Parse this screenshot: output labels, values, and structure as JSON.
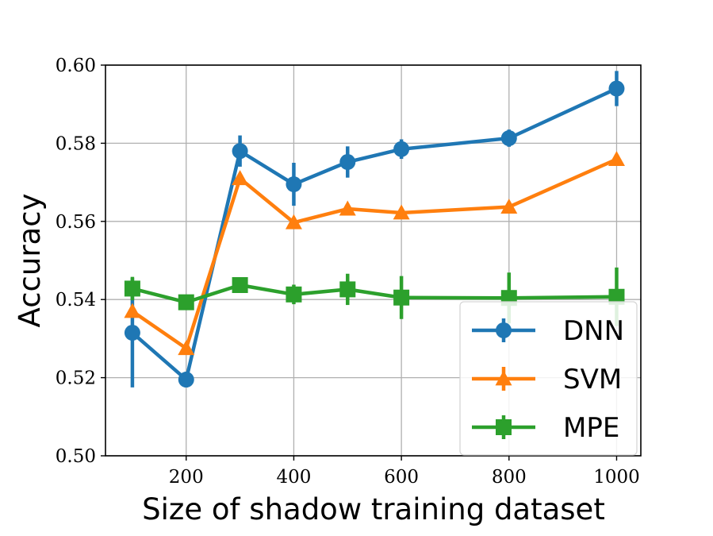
{
  "chart_data": {
    "type": "line",
    "xlabel": "Size of shadow training dataset",
    "ylabel": "Accuracy",
    "xlim": [
      50,
      1045
    ],
    "ylim": [
      0.5,
      0.6
    ],
    "xticks": [
      200,
      400,
      600,
      800,
      1000
    ],
    "yticks": [
      0.5,
      0.52,
      0.54,
      0.56,
      0.58,
      0.6
    ],
    "xtick_labels": [
      "200",
      "400",
      "600",
      "800",
      "1000"
    ],
    "ytick_labels": [
      "0.50",
      "0.52",
      "0.54",
      "0.56",
      "0.58",
      "0.60"
    ],
    "grid": true,
    "legend_position": "lower-right",
    "x": [
      100,
      200,
      300,
      400,
      500,
      600,
      800,
      1000
    ],
    "series": [
      {
        "name": "DNN",
        "color": "#1f77b4",
        "marker": "circle",
        "values": [
          0.5315,
          0.5195,
          0.578,
          0.5695,
          0.5752,
          0.5785,
          0.5813,
          0.594
        ],
        "error": [
          0.014,
          0.002,
          0.004,
          0.0055,
          0.004,
          0.0025,
          0.0022,
          0.0045
        ]
      },
      {
        "name": "SVM",
        "color": "#ff7f0e",
        "marker": "triangle",
        "values": [
          0.537,
          0.5275,
          0.571,
          0.5597,
          0.5632,
          0.5622,
          0.5637,
          0.5759
        ],
        "error": [
          0,
          0,
          0,
          0,
          0,
          0,
          0,
          0
        ]
      },
      {
        "name": "MPE",
        "color": "#2ca02c",
        "marker": "square",
        "values": [
          0.5428,
          0.5393,
          0.5437,
          0.5413,
          0.5426,
          0.5405,
          0.5404,
          0.5407
        ],
        "error": [
          0.003,
          0.001,
          0.001,
          0.0025,
          0.004,
          0.0055,
          0.0065,
          0.0075
        ]
      }
    ]
  }
}
